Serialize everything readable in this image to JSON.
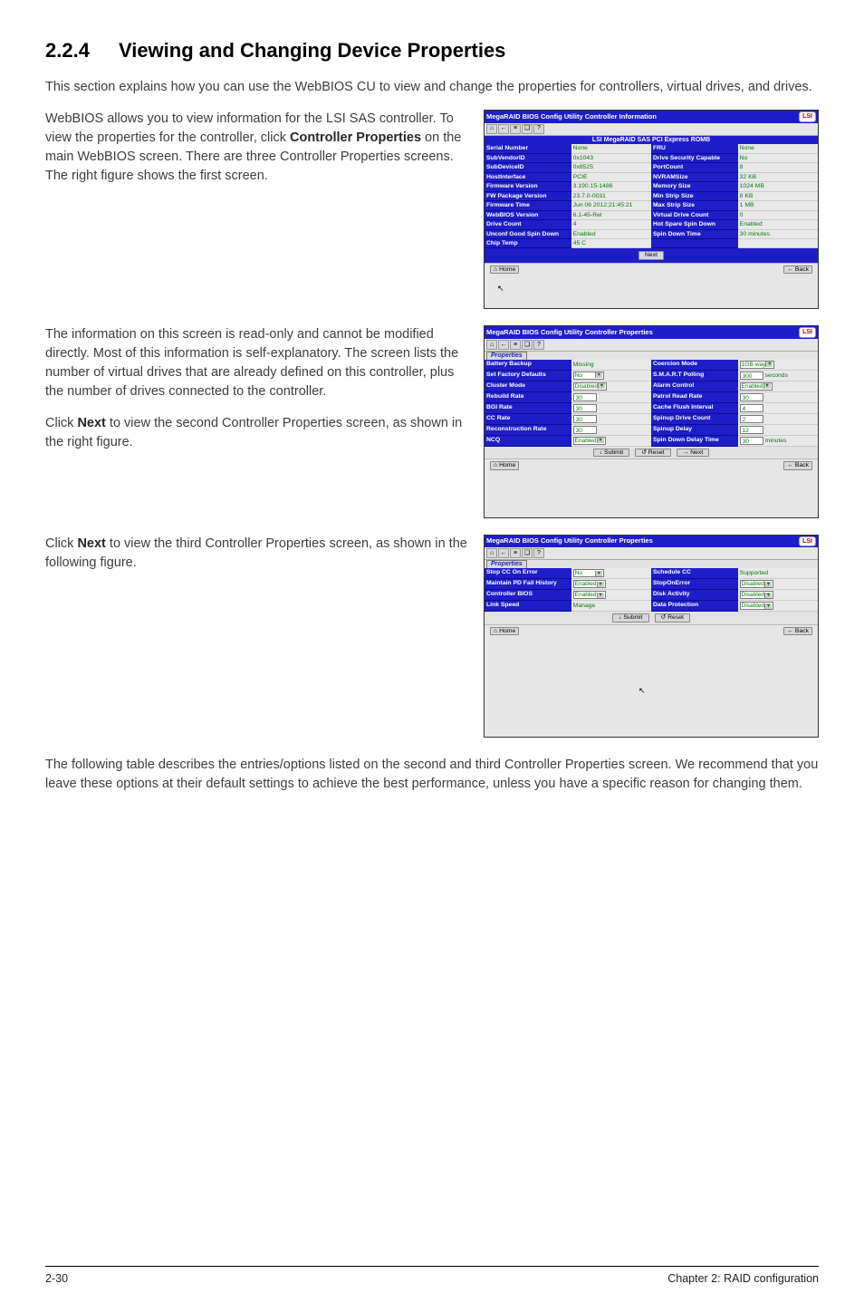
{
  "heading": {
    "num": "2.2.4",
    "title": "Viewing and Changing Device Properties"
  },
  "intro": "This section explains how you can use the WebBIOS CU to view and change the properties for controllers, virtual drives, and drives.",
  "p1": "WebBIOS allows you to view information for the LSI SAS controller. To view the properties for the controller, click ",
  "p1b": "Controller Properties",
  "p1tail": " on the main WebBIOS screen. There are three Controller Properties screens. The right figure shows the first screen.",
  "p2": "The information on this screen is read-only and cannot be modified directly. Most of this information is self-explanatory. The screen lists the number of virtual drives that are already defined on this controller, plus the number of drives connected to the controller.",
  "p3a": "Click ",
  "p3b": "Next",
  "p3c": " to view the second Controller Properties screen, as shown in the right figure.",
  "p4a": "Click ",
  "p4b": "Next",
  "p4c": " to view the third Controller Properties screen, as shown in the following figure.",
  "closing": "The following table describes the entries/options listed on the second and third Controller Properties screen. We recommend that you leave these options at their default settings to achieve the best performance, unless you have a specific reason for changing them.",
  "footer": {
    "left": "2-30",
    "right": "Chapter 2: RAID configuration"
  },
  "win_common": {
    "lsi": "LSI",
    "tb": {
      "home": "⌂",
      "back": "←",
      "a": "≡",
      "b": "❏",
      "c": "?"
    },
    "home_label": "Home",
    "back_label": "Back",
    "next_label": "Next",
    "submit_label": "Submit",
    "reset_label": "Reset",
    "props_tab": "Properties",
    "cursor": "↖"
  },
  "screen1": {
    "title": "MegaRAID BIOS Config Utility Controller Information",
    "section": "LSI MegaRAID SAS PCI Express ROMB",
    "rows": [
      [
        "Serial Number",
        "None",
        "FRU",
        "None"
      ],
      [
        "SubVendorID",
        "0x1043",
        "Drive Security Capable",
        "No"
      ],
      [
        "SubDeviceID",
        "0x8525",
        "PortCount",
        "8"
      ],
      [
        "HostInterface",
        "PCIE",
        "NVRAMSize",
        "32 KB"
      ],
      [
        "Firmware Version",
        "3.190.15-1486",
        "Memory Size",
        "1024 MB"
      ],
      [
        "FW Package Version",
        "23.7.0-0031",
        "Min Strip Size",
        "8 KB"
      ],
      [
        "Firmware Time",
        "Jun 06 2012;21:45:21",
        "Max Strip Size",
        "1 MB"
      ],
      [
        "WebBIOS Version",
        "6.1-45-Rel",
        "Virtual Drive Count",
        "0"
      ],
      [
        "Drive Count",
        "4",
        "Hot Spare Spin Down",
        "Enabled"
      ],
      [
        "Unconf Good Spin Down",
        "Enabled",
        "Spin Down Time",
        "30 minutes"
      ],
      [
        "Chip Temp",
        "45 C",
        "",
        ""
      ]
    ]
  },
  "screen2": {
    "title": "MegaRAID BIOS Config Utility Controller Properties",
    "rows": [
      {
        "l": "Battery Backup",
        "lv": "Missing",
        "lv_static": true,
        "r": "Coercion Mode",
        "rv": "1GB-way",
        "rv_select": true
      },
      {
        "l": "Set Factory Defaults",
        "lv": "No",
        "lv_select": true,
        "r": "S.M.A.R.T Polling",
        "rv": "300",
        "r_suffix": "seconds"
      },
      {
        "l": "Cluster Mode",
        "lv": "Disabled",
        "lv_select": true,
        "r": "Alarm Control",
        "rv": "Enabled",
        "rv_select": true
      },
      {
        "l": "Rebuild Rate",
        "lv": "30",
        "r": "Patrol Read Rate",
        "rv": "30"
      },
      {
        "l": "BGI Rate",
        "lv": "30",
        "r": "Cache Flush Interval",
        "rv": "4"
      },
      {
        "l": "CC Rate",
        "lv": "30",
        "r": "Spinup Drive Count",
        "rv": "2"
      },
      {
        "l": "Reconstruction Rate",
        "lv": "30",
        "r": "Spinup Delay",
        "rv": "12"
      },
      {
        "l": "NCQ",
        "lv": "Enabled",
        "lv_select": true,
        "r": "Spin Down Delay Time",
        "rv": "30",
        "r_suffix": "minutes"
      }
    ]
  },
  "screen3": {
    "title": "MegaRAID BIOS Config Utility Controller Properties",
    "rows": [
      {
        "l": "Stop CC On Error",
        "lv": "No",
        "lv_select": true,
        "r": "Schedule CC",
        "rv": "Supported",
        "rv_static": true
      },
      {
        "l": "Maintain PD Fail History",
        "lv": "Enabled",
        "lv_select": true,
        "r": "StopOnError",
        "rv": "Disabled",
        "rv_select": true
      },
      {
        "l": "Controller BIOS",
        "lv": "Enabled",
        "lv_select": true,
        "r": "Disk Activity",
        "rv": "Disabled",
        "rv_select": true
      },
      {
        "l": "Link Speed",
        "lv": "Manage",
        "lv_static": true,
        "r": "Data Protection",
        "rv": "Disabled",
        "rv_select": true
      }
    ]
  }
}
